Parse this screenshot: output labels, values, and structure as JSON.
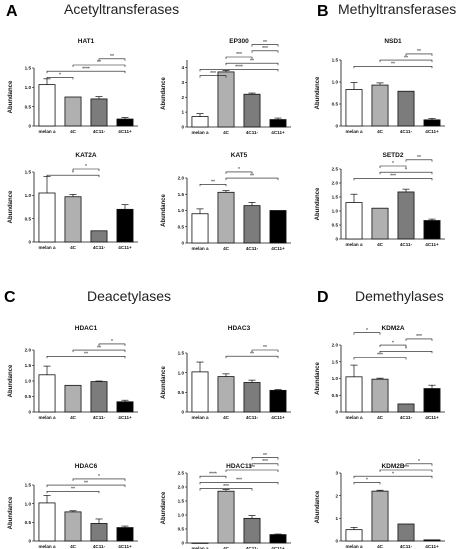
{
  "sections": [
    {
      "letter": "A",
      "title": "Acetyltransferases"
    },
    {
      "letter": "B",
      "title": "Methyltransferases"
    },
    {
      "letter": "C",
      "title": "Deacetylases"
    },
    {
      "letter": "D",
      "title": "Demethylases"
    }
  ],
  "chart_data": [
    {
      "id": "hat1",
      "type": "bar",
      "title": "HAT1",
      "ylabel": "Abundance",
      "categories": [
        "melan a",
        "4C",
        "4C11-",
        "4C11+"
      ],
      "values": [
        1.07,
        0.75,
        0.7,
        0.18
      ],
      "errors": [
        0.15,
        0.0,
        0.06,
        0.04
      ],
      "ylim": [
        0,
        1.5
      ],
      "yticks": [
        "0",
        "0.5",
        "1.0",
        "1.5"
      ],
      "brackets": [
        {
          "from": 0,
          "to": 1,
          "label": "*"
        },
        {
          "from": 0,
          "to": 3,
          "label": "****"
        },
        {
          "from": 1,
          "to": 3,
          "label": "**"
        },
        {
          "from": 2,
          "to": 3,
          "label": "**"
        }
      ]
    },
    {
      "id": "ep300",
      "type": "bar",
      "title": "EP300",
      "ylabel": "Abundance",
      "categories": [
        "melan a",
        "4C",
        "4C11-",
        "4C11+"
      ],
      "values": [
        0.7,
        3.7,
        2.2,
        0.5
      ],
      "errors": [
        0.2,
        0.1,
        0.08,
        0.1
      ],
      "ylim": [
        0,
        4.5
      ],
      "yticks": [
        "0",
        "1",
        "2",
        "3",
        "4"
      ],
      "brackets": [
        {
          "from": 0,
          "to": 1,
          "label": "***"
        },
        {
          "from": 0,
          "to": 3,
          "label": "****"
        },
        {
          "from": 1,
          "to": 3,
          "label": "**"
        },
        {
          "from": 1,
          "to": 2,
          "label": "***"
        },
        {
          "from": 2,
          "to": 3,
          "label": "***"
        },
        {
          "from": 2,
          "to": 3,
          "label": "**"
        }
      ]
    },
    {
      "id": "nsd1",
      "type": "bar",
      "title": "NSD1",
      "ylabel": "Abundance",
      "categories": [
        "melan a",
        "4C",
        "4C11-",
        "4C11+"
      ],
      "values": [
        0.83,
        0.93,
        0.79,
        0.14
      ],
      "errors": [
        0.16,
        0.05,
        0.0,
        0.03
      ],
      "ylim": [
        0,
        1.5
      ],
      "yticks": [
        "0",
        "0.5",
        "1.0",
        "1.5"
      ],
      "brackets": [
        {
          "from": 0,
          "to": 3,
          "label": "**"
        },
        {
          "from": 1,
          "to": 3,
          "label": "**"
        },
        {
          "from": 2,
          "to": 3,
          "label": "**"
        }
      ]
    },
    {
      "id": "kat2a",
      "type": "bar",
      "title": "KAT2A",
      "ylabel": "Abundance",
      "categories": [
        "melan a",
        "4C",
        "4C11-",
        "4C11+"
      ],
      "values": [
        1.05,
        0.97,
        0.24,
        0.7
      ],
      "errors": [
        0.35,
        0.05,
        0.0,
        0.1
      ],
      "ylim": [
        0,
        1.5
      ],
      "yticks": [
        "0",
        "0.5",
        "1.0",
        "1.5"
      ],
      "brackets": [
        {
          "from": 0,
          "to": 2,
          "label": "*"
        },
        {
          "from": 1,
          "to": 2,
          "label": "*"
        }
      ]
    },
    {
      "id": "kat5",
      "type": "bar",
      "title": "KAT5",
      "ylabel": "Abundance",
      "categories": [
        "melan a",
        "4C",
        "4C11-",
        "4C11+"
      ],
      "values": [
        0.9,
        1.56,
        1.15,
        1.0
      ],
      "errors": [
        0.15,
        0.05,
        0.1,
        0.0
      ],
      "ylim": [
        0,
        2.0
      ],
      "yticks": [
        "0",
        "0.5",
        "1.0",
        "1.5",
        "2.0"
      ],
      "brackets": [
        {
          "from": 0,
          "to": 1,
          "label": "**"
        },
        {
          "from": 1,
          "to": 3,
          "label": "**"
        },
        {
          "from": 1,
          "to": 2,
          "label": "*"
        }
      ]
    },
    {
      "id": "setd2",
      "type": "bar",
      "title": "SETD2",
      "ylabel": "Abundance",
      "categories": [
        "melan a",
        "4C",
        "4C11-",
        "4C11+"
      ],
      "values": [
        1.3,
        1.1,
        1.68,
        0.66
      ],
      "errors": [
        0.3,
        0.0,
        0.1,
        0.05
      ],
      "ylim": [
        0,
        2.5
      ],
      "yticks": [
        "0",
        "0.5",
        "1.0",
        "1.5",
        "2.0",
        "2.5"
      ],
      "brackets": [
        {
          "from": 0,
          "to": 3,
          "label": "***"
        },
        {
          "from": 1,
          "to": 3,
          "label": "*"
        },
        {
          "from": 1,
          "to": 2,
          "label": "*"
        },
        {
          "from": 2,
          "to": 3,
          "label": "**"
        }
      ]
    },
    {
      "id": "hdac1",
      "type": "bar",
      "title": "HDAC1",
      "ylabel": "Abundance",
      "categories": [
        "melan a",
        "4C",
        "4C11-",
        "4C11+"
      ],
      "values": [
        1.2,
        0.86,
        0.98,
        0.33
      ],
      "errors": [
        0.28,
        0.0,
        0.02,
        0.05
      ],
      "ylim": [
        0,
        2.0
      ],
      "yticks": [
        "0",
        "0.5",
        "1.0",
        "1.5",
        "2.0"
      ],
      "brackets": [
        {
          "from": 0,
          "to": 3,
          "label": "**"
        },
        {
          "from": 1,
          "to": 3,
          "label": "**"
        },
        {
          "from": 2,
          "to": 3,
          "label": "*"
        }
      ]
    },
    {
      "id": "hdac3",
      "type": "bar",
      "title": "HDAC3",
      "ylabel": "Abundance",
      "categories": [
        "melan a",
        "4C",
        "4C11-",
        "4C11+"
      ],
      "values": [
        1.02,
        0.9,
        0.75,
        0.55
      ],
      "errors": [
        0.25,
        0.07,
        0.06,
        0.02
      ],
      "ylim": [
        0,
        1.5
      ],
      "yticks": [
        "0",
        "0.5",
        "1.0",
        "1.5"
      ],
      "brackets": [
        {
          "from": 1,
          "to": 3,
          "label": "**"
        },
        {
          "from": 2,
          "to": 3,
          "label": "**"
        }
      ]
    },
    {
      "id": "kdm2a",
      "type": "bar",
      "title": "KDM2A",
      "ylabel": "Abundance",
      "categories": [
        "melan a",
        "4C",
        "4C11-",
        "4C11+"
      ],
      "values": [
        1.05,
        0.98,
        0.24,
        0.7
      ],
      "errors": [
        0.35,
        0.03,
        0.0,
        0.1
      ],
      "ylim": [
        0,
        2.0
      ],
      "yticks": [
        "0",
        "0.5",
        "1.0",
        "1.5",
        "2.0"
      ],
      "brackets": [
        {
          "from": 0,
          "to": 2,
          "label": "***"
        },
        {
          "from": 1,
          "to": 3,
          "label": "*"
        },
        {
          "from": 1,
          "to": 2,
          "label": "*"
        },
        {
          "from": 2,
          "to": 3,
          "label": "***"
        },
        {
          "from": 0,
          "to": 1,
          "label": "*"
        }
      ]
    },
    {
      "id": "hdac6",
      "type": "bar",
      "title": "HDAC6",
      "ylabel": "Abundance",
      "categories": [
        "melan a",
        "4C",
        "4C11-",
        "4C11+"
      ],
      "values": [
        1.02,
        0.78,
        0.47,
        0.36
      ],
      "errors": [
        0.2,
        0.03,
        0.12,
        0.04
      ],
      "ylim": [
        0,
        1.5
      ],
      "yticks": [
        "0",
        "0.5",
        "1.0",
        "1.5"
      ],
      "brackets": [
        {
          "from": 0,
          "to": 2,
          "label": "**"
        },
        {
          "from": 0,
          "to": 3,
          "label": "**"
        },
        {
          "from": 1,
          "to": 3,
          "label": "*"
        }
      ]
    },
    {
      "id": "hdac11",
      "type": "bar",
      "title": "HDAC11",
      "ylabel": "Abundance",
      "categories": [
        "melan a",
        "4C",
        "4C11-",
        "4C11+"
      ],
      "values": [
        0.0,
        1.85,
        0.88,
        0.3
      ],
      "errors": [
        0.0,
        0.06,
        0.1,
        0.02
      ],
      "ylim": [
        0,
        2.5
      ],
      "yticks": [
        "0",
        "0.5",
        "1.0",
        "1.5",
        "2.0",
        "2.5"
      ],
      "brackets": [
        {
          "from": 0,
          "to": 2,
          "label": "***"
        },
        {
          "from": 0,
          "to": 3,
          "label": "***"
        },
        {
          "from": 0,
          "to": 1,
          "label": "****"
        },
        {
          "from": 1,
          "to": 3,
          "label": "***"
        },
        {
          "from": 2,
          "to": 3,
          "label": "***"
        },
        {
          "from": 2,
          "to": 3,
          "label": "**"
        }
      ]
    },
    {
      "id": "kdm2b",
      "type": "bar",
      "title": "KDM2B",
      "ylabel": "Abundance",
      "categories": [
        "melan a",
        "4C",
        "4C11-",
        "4C11+"
      ],
      "values": [
        0.5,
        2.2,
        0.75,
        0.05
      ],
      "errors": [
        0.1,
        0.04,
        0.0,
        0.0
      ],
      "ylim": [
        0,
        3.0
      ],
      "yticks": [
        "0",
        "1",
        "2",
        "3"
      ],
      "brackets": [
        {
          "from": 0,
          "to": 1,
          "label": "*"
        },
        {
          "from": 0,
          "to": 3,
          "label": "*"
        },
        {
          "from": 1,
          "to": 3,
          "label": "***"
        },
        {
          "from": 2,
          "to": 3,
          "label": "*"
        }
      ]
    }
  ],
  "colors": {
    "bar_fills": [
      "#ffffff",
      "#b0b0b0",
      "#7c7c7c",
      "#000000"
    ],
    "stroke": "#111111"
  }
}
